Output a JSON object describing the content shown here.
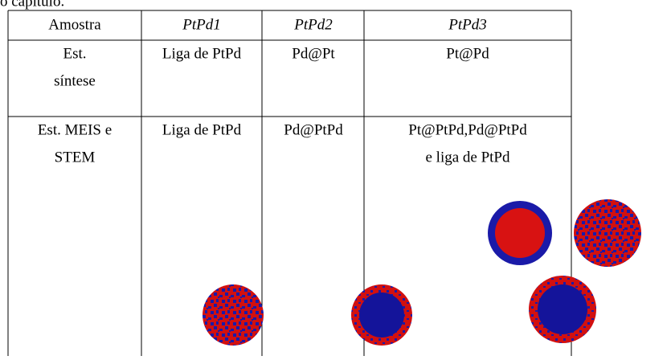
{
  "caption_fragment": "o capítulo.",
  "table": {
    "header": [
      "Amostra",
      "PtPd1",
      "PtPd2",
      "PtPd3"
    ],
    "rows": [
      [
        [
          "Est.",
          "síntese"
        ],
        [
          "Liga de PtPd"
        ],
        [
          "Pd@Pt"
        ],
        [
          "Pt@Pd"
        ]
      ],
      [
        [
          "Est. MEIS e",
          "STEM"
        ],
        [
          "Liga de PtPd"
        ],
        [
          "Pd@PtPd"
        ],
        [
          "Pt@PtPd,Pd@PtPd",
          "e liga de PtPd"
        ]
      ]
    ]
  }
}
